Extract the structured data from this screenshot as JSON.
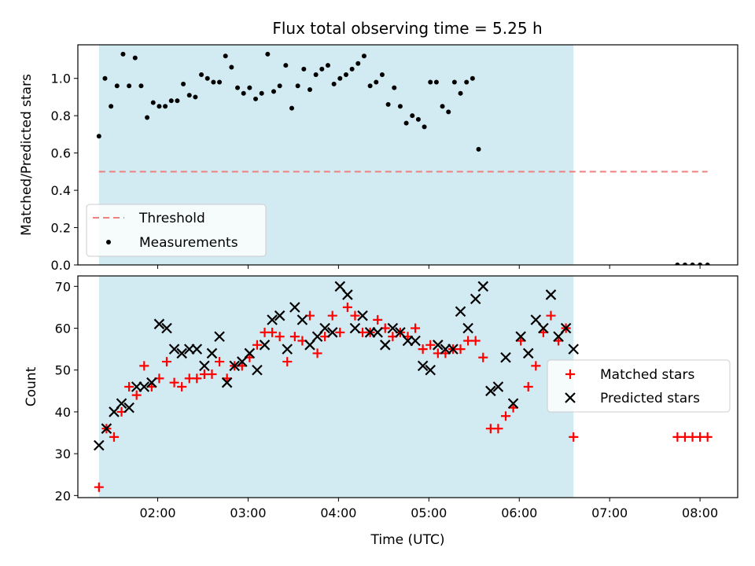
{
  "chart_data": [
    {
      "type": "scatter",
      "title": "Flux total observing time = 5.25 h",
      "xlabel": "",
      "ylabel": "Matched/Predicted stars",
      "xlim": [
        "01:07",
        "08:25"
      ],
      "ylim": [
        0,
        1.18
      ],
      "yticks": [
        "0.0",
        "0.2",
        "0.4",
        "0.6",
        "0.8",
        "1.0"
      ],
      "grid": false,
      "legend_position": "lower-left",
      "shaded_interval": [
        "01:21",
        "06:36"
      ],
      "shade_color": "#add8e6",
      "threshold": {
        "name": "Threshold",
        "value": 0.5,
        "x_range": [
          "01:21",
          "08:05"
        ],
        "color": "#f08080"
      },
      "series": [
        {
          "name": "Measurements",
          "color": "#000000",
          "marker": "dot",
          "points": [
            [
              "01:21",
              0.69
            ],
            [
              "01:25",
              1.0
            ],
            [
              "01:29",
              0.85
            ],
            [
              "01:33",
              0.96
            ],
            [
              "01:37",
              1.13
            ],
            [
              "01:41",
              0.96
            ],
            [
              "01:45",
              1.11
            ],
            [
              "01:49",
              0.96
            ],
            [
              "01:53",
              0.79
            ],
            [
              "01:57",
              0.87
            ],
            [
              "02:01",
              0.85
            ],
            [
              "02:05",
              0.85
            ],
            [
              "02:09",
              0.88
            ],
            [
              "02:13",
              0.88
            ],
            [
              "02:17",
              0.97
            ],
            [
              "02:21",
              0.91
            ],
            [
              "02:25",
              0.9
            ],
            [
              "02:29",
              1.02
            ],
            [
              "02:33",
              1.0
            ],
            [
              "02:37",
              0.98
            ],
            [
              "02:41",
              0.98
            ],
            [
              "02:45",
              1.12
            ],
            [
              "02:49",
              1.06
            ],
            [
              "02:53",
              0.95
            ],
            [
              "02:57",
              0.92
            ],
            [
              "03:01",
              0.95
            ],
            [
              "03:05",
              0.89
            ],
            [
              "03:09",
              0.92
            ],
            [
              "03:13",
              1.13
            ],
            [
              "03:17",
              0.93
            ],
            [
              "03:21",
              0.96
            ],
            [
              "03:25",
              1.07
            ],
            [
              "03:29",
              0.84
            ],
            [
              "03:33",
              0.96
            ],
            [
              "03:37",
              1.05
            ],
            [
              "03:41",
              0.94
            ],
            [
              "03:45",
              1.02
            ],
            [
              "03:49",
              1.05
            ],
            [
              "03:53",
              1.07
            ],
            [
              "03:57",
              0.97
            ],
            [
              "04:01",
              1.0
            ],
            [
              "04:05",
              1.02
            ],
            [
              "04:09",
              1.05
            ],
            [
              "04:13",
              1.08
            ],
            [
              "04:17",
              1.12
            ],
            [
              "04:21",
              0.96
            ],
            [
              "04:25",
              0.98
            ],
            [
              "04:29",
              1.02
            ],
            [
              "04:33",
              0.86
            ],
            [
              "04:37",
              0.95
            ],
            [
              "04:41",
              0.85
            ],
            [
              "04:45",
              0.76
            ],
            [
              "04:49",
              0.8
            ],
            [
              "04:53",
              0.78
            ],
            [
              "04:57",
              0.74
            ],
            [
              "05:01",
              0.98
            ],
            [
              "05:05",
              0.98
            ],
            [
              "05:09",
              0.85
            ],
            [
              "05:13",
              0.82
            ],
            [
              "05:17",
              0.98
            ],
            [
              "05:21",
              0.92
            ],
            [
              "05:25",
              0.98
            ],
            [
              "05:29",
              1.0
            ],
            [
              "05:33",
              0.62
            ],
            [
              "07:45",
              0.0
            ],
            [
              "07:50",
              0.0
            ],
            [
              "07:55",
              0.0
            ],
            [
              "08:00",
              0.0
            ],
            [
              "08:05",
              0.0
            ]
          ]
        }
      ]
    },
    {
      "type": "scatter",
      "title": "",
      "xlabel": "Time (UTC)",
      "ylabel": "Count",
      "xlim": [
        "01:07",
        "08:25"
      ],
      "xticks": [
        "02:00",
        "03:00",
        "04:00",
        "05:00",
        "06:00",
        "07:00",
        "08:00"
      ],
      "ylim": [
        19.5,
        72.5
      ],
      "yticks": [
        "20",
        "30",
        "40",
        "50",
        "60",
        "70"
      ],
      "grid": false,
      "legend_position": "center-right",
      "shaded_interval": [
        "01:21",
        "06:36"
      ],
      "series": [
        {
          "name": "Matched stars",
          "color": "#ff0000",
          "marker": "plus",
          "points": [
            [
              "01:21",
              22
            ],
            [
              "01:26",
              36
            ],
            [
              "01:31",
              34
            ],
            [
              "01:36",
              40
            ],
            [
              "01:41",
              46
            ],
            [
              "01:46",
              44
            ],
            [
              "01:51",
              51
            ],
            [
              "01:56",
              46
            ],
            [
              "02:01",
              48
            ],
            [
              "02:06",
              52
            ],
            [
              "02:11",
              47
            ],
            [
              "02:16",
              46
            ],
            [
              "02:21",
              48
            ],
            [
              "02:26",
              48
            ],
            [
              "02:31",
              49
            ],
            [
              "02:36",
              49
            ],
            [
              "02:41",
              52
            ],
            [
              "02:46",
              48
            ],
            [
              "02:51",
              51
            ],
            [
              "02:56",
              51
            ],
            [
              "03:01",
              53
            ],
            [
              "03:06",
              56
            ],
            [
              "03:11",
              59
            ],
            [
              "03:16",
              59
            ],
            [
              "03:21",
              58
            ],
            [
              "03:26",
              52
            ],
            [
              "03:31",
              58
            ],
            [
              "03:36",
              57
            ],
            [
              "03:41",
              63
            ],
            [
              "03:46",
              54
            ],
            [
              "03:51",
              58
            ],
            [
              "03:56",
              63
            ],
            [
              "04:01",
              59
            ],
            [
              "04:06",
              65
            ],
            [
              "04:11",
              63
            ],
            [
              "04:16",
              59
            ],
            [
              "04:21",
              59
            ],
            [
              "04:26",
              62
            ],
            [
              "04:31",
              60
            ],
            [
              "04:36",
              58
            ],
            [
              "04:41",
              59
            ],
            [
              "04:46",
              58
            ],
            [
              "04:51",
              60
            ],
            [
              "04:56",
              55
            ],
            [
              "05:01",
              56
            ],
            [
              "05:06",
              54
            ],
            [
              "05:11",
              54
            ],
            [
              "05:16",
              55
            ],
            [
              "05:21",
              55
            ],
            [
              "05:26",
              57
            ],
            [
              "05:31",
              57
            ],
            [
              "05:36",
              53
            ],
            [
              "05:41",
              36
            ],
            [
              "05:46",
              36
            ],
            [
              "05:51",
              39
            ],
            [
              "05:56",
              41
            ],
            [
              "06:01",
              57
            ],
            [
              "06:06",
              46
            ],
            [
              "06:11",
              51
            ],
            [
              "06:16",
              59
            ],
            [
              "06:21",
              63
            ],
            [
              "06:26",
              57
            ],
            [
              "06:31",
              60
            ],
            [
              "06:36",
              34
            ],
            [
              "07:45",
              34
            ],
            [
              "07:50",
              34
            ],
            [
              "07:55",
              34
            ],
            [
              "08:00",
              34
            ],
            [
              "08:05",
              34
            ]
          ]
        },
        {
          "name": "Predicted stars",
          "color": "#000000",
          "marker": "x",
          "points": [
            [
              "01:21",
              32
            ],
            [
              "01:26",
              36
            ],
            [
              "01:31",
              40
            ],
            [
              "01:36",
              42
            ],
            [
              "01:41",
              41
            ],
            [
              "01:46",
              46
            ],
            [
              "01:51",
              46
            ],
            [
              "01:56",
              47
            ],
            [
              "02:01",
              61
            ],
            [
              "02:06",
              60
            ],
            [
              "02:11",
              55
            ],
            [
              "02:16",
              54
            ],
            [
              "02:21",
              55
            ],
            [
              "02:26",
              55
            ],
            [
              "02:31",
              51
            ],
            [
              "02:36",
              54
            ],
            [
              "02:41",
              58
            ],
            [
              "02:46",
              47
            ],
            [
              "02:51",
              51
            ],
            [
              "02:56",
              52
            ],
            [
              "03:01",
              54
            ],
            [
              "03:06",
              50
            ],
            [
              "03:11",
              56
            ],
            [
              "03:16",
              62
            ],
            [
              "03:21",
              63
            ],
            [
              "03:26",
              55
            ],
            [
              "03:31",
              65
            ],
            [
              "03:36",
              62
            ],
            [
              "03:41",
              56
            ],
            [
              "03:46",
              58
            ],
            [
              "03:51",
              60
            ],
            [
              "03:56",
              59
            ],
            [
              "04:01",
              70
            ],
            [
              "04:06",
              68
            ],
            [
              "04:11",
              60
            ],
            [
              "04:16",
              63
            ],
            [
              "04:21",
              59
            ],
            [
              "04:26",
              59
            ],
            [
              "04:31",
              56
            ],
            [
              "04:36",
              60
            ],
            [
              "04:41",
              59
            ],
            [
              "04:46",
              57
            ],
            [
              "04:51",
              57
            ],
            [
              "04:56",
              51
            ],
            [
              "05:01",
              50
            ],
            [
              "05:06",
              56
            ],
            [
              "05:11",
              55
            ],
            [
              "05:16",
              55
            ],
            [
              "05:21",
              64
            ],
            [
              "05:26",
              60
            ],
            [
              "05:31",
              67
            ],
            [
              "05:36",
              70
            ],
            [
              "05:41",
              45
            ],
            [
              "05:46",
              46
            ],
            [
              "05:51",
              53
            ],
            [
              "05:56",
              42
            ],
            [
              "06:01",
              58
            ],
            [
              "06:06",
              54
            ],
            [
              "06:11",
              62
            ],
            [
              "06:16",
              60
            ],
            [
              "06:21",
              68
            ],
            [
              "06:26",
              58
            ],
            [
              "06:31",
              60
            ],
            [
              "06:36",
              55
            ]
          ]
        }
      ]
    }
  ]
}
